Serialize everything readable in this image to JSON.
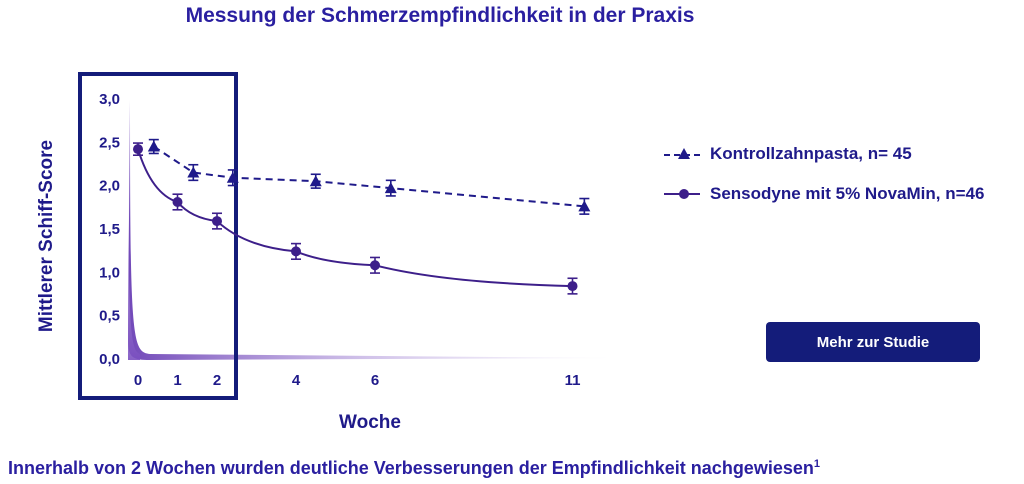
{
  "chart_data": {
    "type": "line",
    "title": "Messung der Schmerzempfindlichkeit in der Praxis",
    "xlabel": "Woche",
    "ylabel": "Mittlerer Schiff-Score",
    "ylim": [
      0,
      3.0
    ],
    "y_ticks": [
      "0,0",
      "0,5",
      "1,0",
      "1,5",
      "2,0",
      "2,5",
      "3,0"
    ],
    "x_ticks": [
      "0",
      "1",
      "2",
      "4",
      "6",
      "11"
    ],
    "grid": false,
    "legend_position": "right",
    "highlight_range": [
      0,
      2
    ],
    "series": [
      {
        "name": "Kontrollzahnpasta, n= 45",
        "style": "dashed",
        "marker": "triangle",
        "color": "#1f1a8a",
        "x": [
          0.4,
          1.4,
          2.4,
          4.5,
          6.4,
          11.3
        ],
        "y": [
          2.44,
          2.14,
          2.08,
          2.04,
          1.96,
          1.75
        ],
        "err": [
          0.08,
          0.09,
          0.09,
          0.08,
          0.09,
          0.09
        ]
      },
      {
        "name": "Sensodyne mit 5% NovaMin, n=46",
        "style": "solid",
        "marker": "circle",
        "color": "#3d1f8a",
        "x": [
          0,
          1,
          2,
          4,
          6,
          11
        ],
        "y": [
          2.41,
          1.8,
          1.58,
          1.23,
          1.07,
          0.83
        ],
        "err": [
          0.07,
          0.09,
          0.09,
          0.09,
          0.09,
          0.09
        ]
      }
    ]
  },
  "cta": {
    "label": "Mehr zur Studie"
  },
  "footnote": {
    "text": "Innerhalb von 2 Wochen wurden deutliche Verbesserungen der Empfindlichkeit nachgewiesen",
    "ref": "1"
  },
  "colors": {
    "primary": "#1f1a8a",
    "button": "#141c7a",
    "purple": "#7a4fc0"
  }
}
